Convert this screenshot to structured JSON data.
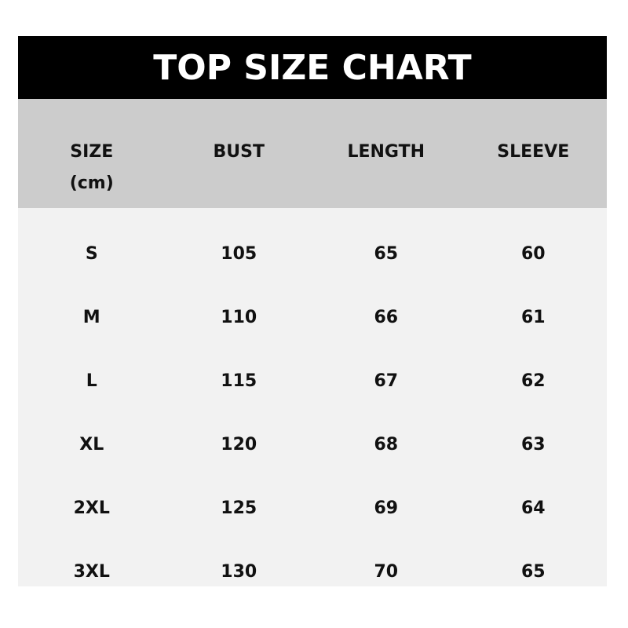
{
  "title": "TOP SIZE CHART",
  "headers": [
    "SIZE\n(cm)",
    "BUST",
    "LENGTH",
    "SLEEVE"
  ],
  "header_size_line1": "SIZE",
  "header_size_line2": "(cm)",
  "rows": [
    [
      "S",
      "105",
      "65",
      "60"
    ],
    [
      "M",
      "110",
      "66",
      "61"
    ],
    [
      "L",
      "115",
      "67",
      "62"
    ],
    [
      "XL",
      "120",
      "68",
      "63"
    ],
    [
      "2XL",
      "125",
      "69",
      "64"
    ],
    [
      "3XL",
      "130",
      "70",
      "65"
    ]
  ],
  "colors": {
    "title_bg": "#000000",
    "header_bg": "#cccccc",
    "body_bg": "#f2f2f2"
  }
}
